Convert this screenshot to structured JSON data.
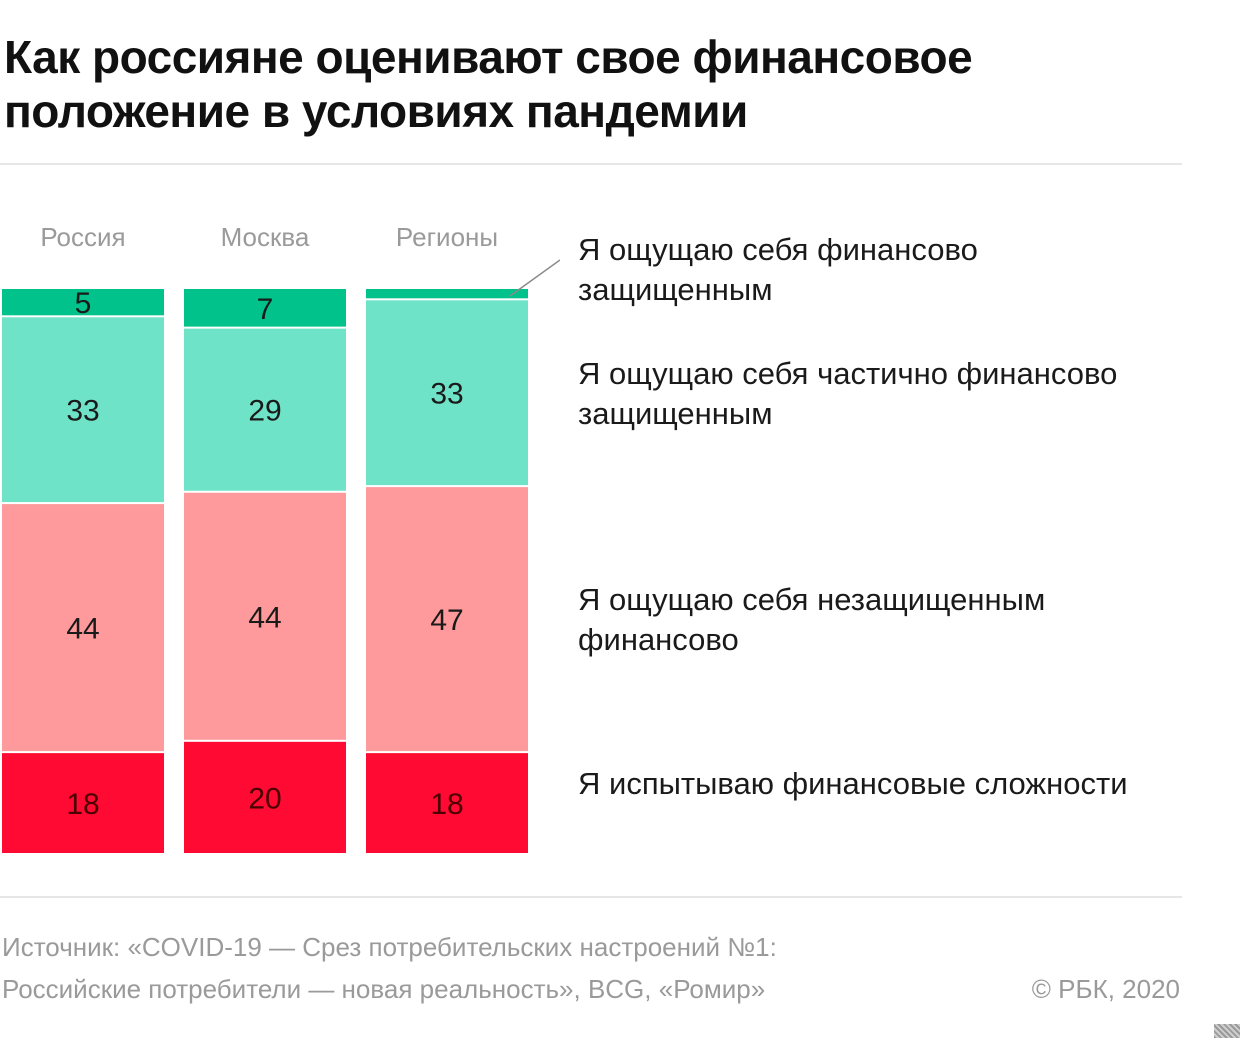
{
  "title": "Как россияне оценивают свое финансовое положение в условиях пандемии",
  "source": {
    "line1": "Источник: «COVID-19 — Срез потребительских настроений №1:",
    "line2": "Российские потребители — новая реальность», BCG, «Ромир»"
  },
  "copyright": "© РБК, 2020",
  "chart_data": {
    "type": "bar",
    "stacked": true,
    "orientation": "vertical",
    "unit": "%",
    "categories": [
      "Россия",
      "Москва",
      "Регионы"
    ],
    "series": [
      {
        "name": "Я ощущаю себя финансово защищенным",
        "values": [
          5,
          7,
          2
        ],
        "labels": [
          "5",
          "7",
          ""
        ],
        "color": "#00c28a"
      },
      {
        "name": "Я ощущаю себя частично финансово защищенным",
        "values": [
          33,
          29,
          33
        ],
        "labels": [
          "33",
          "29",
          "33"
        ],
        "color": "#6ee3c8"
      },
      {
        "name": "Я ощущаю себя незащищенным финансово",
        "values": [
          44,
          44,
          47
        ],
        "labels": [
          "44",
          "44",
          "47"
        ],
        "color": "#ff9a9c"
      },
      {
        "name": "Я испытываю финансовые сложности",
        "values": [
          18,
          20,
          18
        ],
        "labels": [
          "18",
          "20",
          "18"
        ],
        "color": "#ff0a32"
      }
    ],
    "legend_position": "right"
  }
}
